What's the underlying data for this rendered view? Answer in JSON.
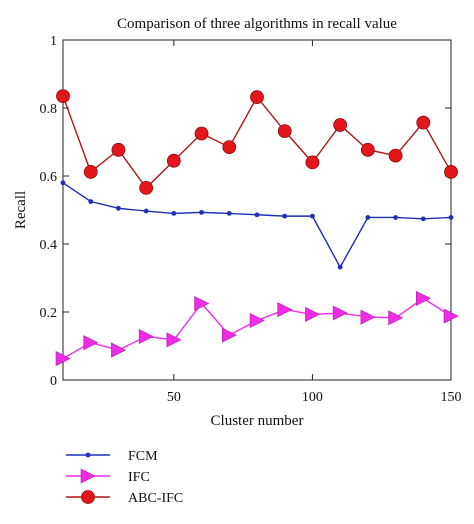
{
  "chart_data": {
    "type": "line",
    "title": "Comparison of three algorithms in recall value",
    "xlabel": "Cluster number",
    "ylabel": "Recall",
    "xlim": [
      10,
      150
    ],
    "ylim": [
      0,
      1
    ],
    "xticks": [
      "50",
      "100",
      "150"
    ],
    "xtick_values": [
      50,
      100,
      150
    ],
    "yticks": [
      "0",
      "0.2",
      "0.4",
      "0.6",
      "0.8",
      "1"
    ],
    "ytick_values": [
      0,
      0.2,
      0.4,
      0.6,
      0.8,
      1
    ],
    "grid": false,
    "legend_position": "bottom-left",
    "x": [
      10,
      20,
      30,
      40,
      50,
      60,
      70,
      80,
      90,
      100,
      110,
      120,
      130,
      140,
      150
    ],
    "series": [
      {
        "name": "FCM",
        "color": "#1f2fb8",
        "marker": "dot",
        "values": [
          0.58,
          0.525,
          0.505,
          0.497,
          0.49,
          0.493,
          0.49,
          0.486,
          0.482,
          0.482,
          0.332,
          0.478,
          0.478,
          0.474,
          0.478
        ]
      },
      {
        "name": "IFC",
        "color": "#ee2ce6",
        "marker": "triangle-right",
        "values": [
          0.063,
          0.11,
          0.088,
          0.128,
          0.118,
          0.225,
          0.132,
          0.175,
          0.207,
          0.193,
          0.197,
          0.185,
          0.183,
          0.24,
          0.188
        ]
      },
      {
        "name": "ABC-IFC",
        "color": "#e4161b",
        "marker": "circle",
        "line_color": "#b01616",
        "values": [
          0.835,
          0.612,
          0.677,
          0.565,
          0.645,
          0.725,
          0.685,
          0.832,
          0.732,
          0.64,
          0.75,
          0.677,
          0.66,
          0.757,
          0.612
        ]
      }
    ]
  }
}
